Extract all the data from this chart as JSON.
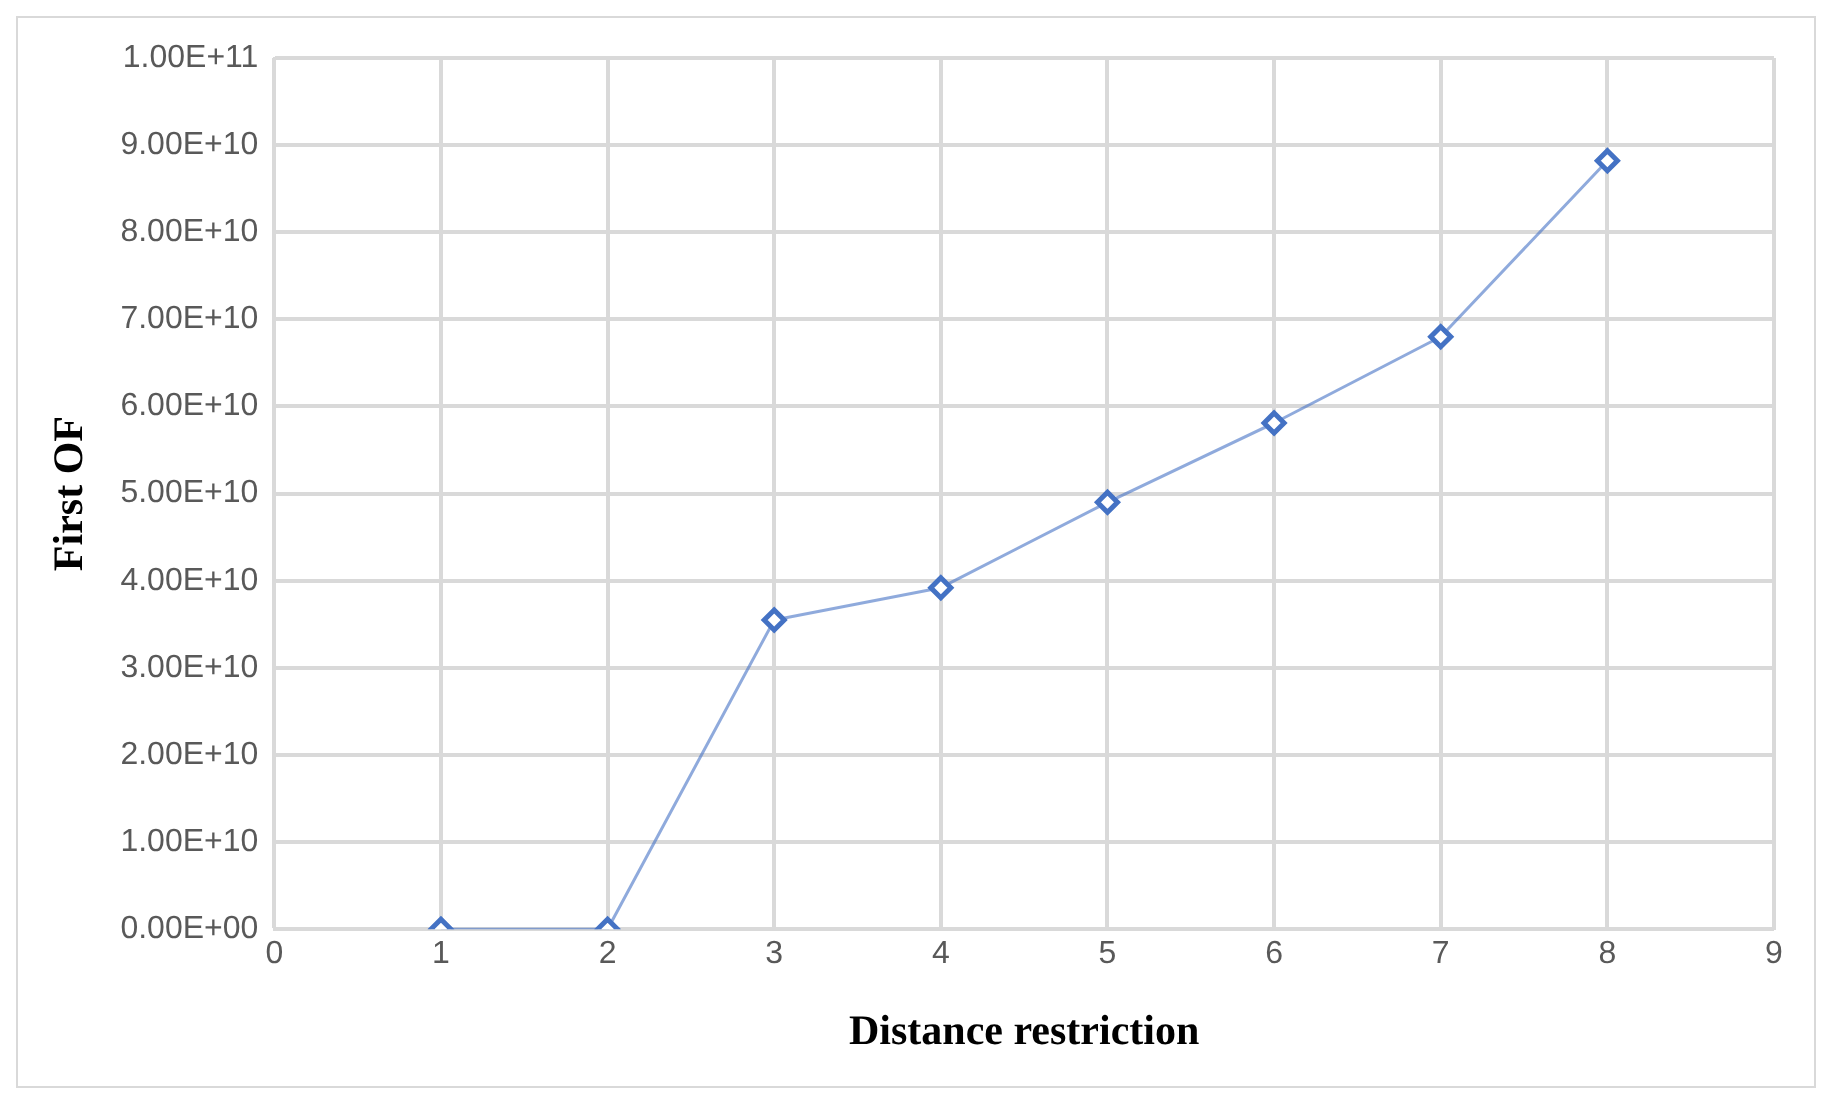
{
  "chart_data": {
    "type": "line",
    "xlabel": "Distance restriction",
    "ylabel": "First OF",
    "x": [
      1,
      2,
      3,
      4,
      5,
      6,
      7,
      8
    ],
    "series": [
      {
        "color": "#4472c4",
        "values": [
          0,
          0,
          35500000000,
          39200000000,
          49000000000,
          58100000000,
          68000000000,
          88200000000
        ]
      }
    ],
    "xlim": [
      0,
      9
    ],
    "xticks": [
      0,
      1,
      2,
      3,
      4,
      5,
      6,
      7,
      8,
      9
    ],
    "ylim": [
      0,
      100000000000
    ],
    "yticks": [
      {
        "value": 0,
        "label": "0.00E+00"
      },
      {
        "value": 10000000000,
        "label": "1.00E+10"
      },
      {
        "value": 20000000000,
        "label": "2.00E+10"
      },
      {
        "value": 30000000000,
        "label": "3.00E+10"
      },
      {
        "value": 40000000000,
        "label": "4.00E+10"
      },
      {
        "value": 50000000000,
        "label": "5.00E+10"
      },
      {
        "value": 60000000000,
        "label": "6.00E+10"
      },
      {
        "value": 70000000000,
        "label": "7.00E+10"
      },
      {
        "value": 80000000000,
        "label": "8.00E+10"
      },
      {
        "value": 90000000000,
        "label": "9.00E+10"
      },
      {
        "value": 100000000000,
        "label": "1.00E+11"
      }
    ],
    "grid": true,
    "marker": "diamond",
    "line_style": "solid",
    "legend": false
  }
}
